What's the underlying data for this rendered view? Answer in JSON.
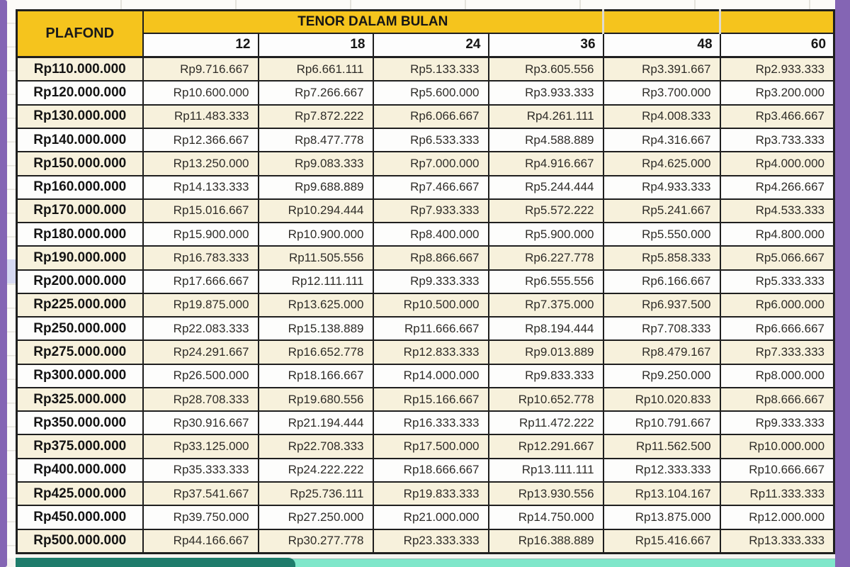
{
  "frame": {
    "side_bar_color": "#8465b4",
    "banner_dark_color": "#1e7c6b",
    "banner_light_color": "#7fe7ca"
  },
  "table": {
    "colors": {
      "header_yellow": "#f5c41d",
      "row_cream": "#f7f1dc",
      "row_white": "#fdfdfc",
      "grid_border": "#1f1f1f"
    },
    "header": {
      "plafond_label": "PLAFOND",
      "tenor_label": "TENOR DALAM BULAN",
      "tenor_columns": [
        "12",
        "18",
        "24",
        "36",
        "48",
        "60"
      ]
    },
    "rows": [
      {
        "plafond": "Rp110.000.000",
        "values": [
          "Rp9.716.667",
          "Rp6.661.111",
          "Rp5.133.333",
          "Rp3.605.556",
          "Rp3.391.667",
          "Rp2.933.333"
        ]
      },
      {
        "plafond": "Rp120.000.000",
        "values": [
          "Rp10.600.000",
          "Rp7.266.667",
          "Rp5.600.000",
          "Rp3.933.333",
          "Rp3.700.000",
          "Rp3.200.000"
        ]
      },
      {
        "plafond": "Rp130.000.000",
        "values": [
          "Rp11.483.333",
          "Rp7.872.222",
          "Rp6.066.667",
          "Rp4.261.111",
          "Rp4.008.333",
          "Rp3.466.667"
        ]
      },
      {
        "plafond": "Rp140.000.000",
        "values": [
          "Rp12.366.667",
          "Rp8.477.778",
          "Rp6.533.333",
          "Rp4.588.889",
          "Rp4.316.667",
          "Rp3.733.333"
        ]
      },
      {
        "plafond": "Rp150.000.000",
        "values": [
          "Rp13.250.000",
          "Rp9.083.333",
          "Rp7.000.000",
          "Rp4.916.667",
          "Rp4.625.000",
          "Rp4.000.000"
        ]
      },
      {
        "plafond": "Rp160.000.000",
        "values": [
          "Rp14.133.333",
          "Rp9.688.889",
          "Rp7.466.667",
          "Rp5.244.444",
          "Rp4.933.333",
          "Rp4.266.667"
        ]
      },
      {
        "plafond": "Rp170.000.000",
        "values": [
          "Rp15.016.667",
          "Rp10.294.444",
          "Rp7.933.333",
          "Rp5.572.222",
          "Rp5.241.667",
          "Rp4.533.333"
        ]
      },
      {
        "plafond": "Rp180.000.000",
        "values": [
          "Rp15.900.000",
          "Rp10.900.000",
          "Rp8.400.000",
          "Rp5.900.000",
          "Rp5.550.000",
          "Rp4.800.000"
        ]
      },
      {
        "plafond": "Rp190.000.000",
        "values": [
          "Rp16.783.333",
          "Rp11.505.556",
          "Rp8.866.667",
          "Rp6.227.778",
          "Rp5.858.333",
          "Rp5.066.667"
        ]
      },
      {
        "plafond": "Rp200.000.000",
        "values": [
          "Rp17.666.667",
          "Rp12.111.111",
          "Rp9.333.333",
          "Rp6.555.556",
          "Rp6.166.667",
          "Rp5.333.333"
        ]
      },
      {
        "plafond": "Rp225.000.000",
        "values": [
          "Rp19.875.000",
          "Rp13.625.000",
          "Rp10.500.000",
          "Rp7.375.000",
          "Rp6.937.500",
          "Rp6.000.000"
        ]
      },
      {
        "plafond": "Rp250.000.000",
        "values": [
          "Rp22.083.333",
          "Rp15.138.889",
          "Rp11.666.667",
          "Rp8.194.444",
          "Rp7.708.333",
          "Rp6.666.667"
        ]
      },
      {
        "plafond": "Rp275.000.000",
        "values": [
          "Rp24.291.667",
          "Rp16.652.778",
          "Rp12.833.333",
          "Rp9.013.889",
          "Rp8.479.167",
          "Rp7.333.333"
        ]
      },
      {
        "plafond": "Rp300.000.000",
        "values": [
          "Rp26.500.000",
          "Rp18.166.667",
          "Rp14.000.000",
          "Rp9.833.333",
          "Rp9.250.000",
          "Rp8.000.000"
        ]
      },
      {
        "plafond": "Rp325.000.000",
        "values": [
          "Rp28.708.333",
          "Rp19.680.556",
          "Rp15.166.667",
          "Rp10.652.778",
          "Rp10.020.833",
          "Rp8.666.667"
        ]
      },
      {
        "plafond": "Rp350.000.000",
        "values": [
          "Rp30.916.667",
          "Rp21.194.444",
          "Rp16.333.333",
          "Rp11.472.222",
          "Rp10.791.667",
          "Rp9.333.333"
        ]
      },
      {
        "plafond": "Rp375.000.000",
        "values": [
          "Rp33.125.000",
          "Rp22.708.333",
          "Rp17.500.000",
          "Rp12.291.667",
          "Rp11.562.500",
          "Rp10.000.000"
        ]
      },
      {
        "plafond": "Rp400.000.000",
        "values": [
          "Rp35.333.333",
          "Rp24.222.222",
          "Rp18.666.667",
          "Rp13.111.111",
          "Rp12.333.333",
          "Rp10.666.667"
        ]
      },
      {
        "plafond": "Rp425.000.000",
        "values": [
          "Rp37.541.667",
          "Rp25.736.111",
          "Rp19.833.333",
          "Rp13.930.556",
          "Rp13.104.167",
          "Rp11.333.333"
        ]
      },
      {
        "plafond": "Rp450.000.000",
        "values": [
          "Rp39.750.000",
          "Rp27.250.000",
          "Rp21.000.000",
          "Rp14.750.000",
          "Rp13.875.000",
          "Rp12.000.000"
        ]
      },
      {
        "plafond": "Rp500.000.000",
        "values": [
          "Rp44.166.667",
          "Rp30.277.778",
          "Rp23.333.333",
          "Rp16.388.889",
          "Rp15.416.667",
          "Rp13.333.333"
        ]
      }
    ]
  }
}
